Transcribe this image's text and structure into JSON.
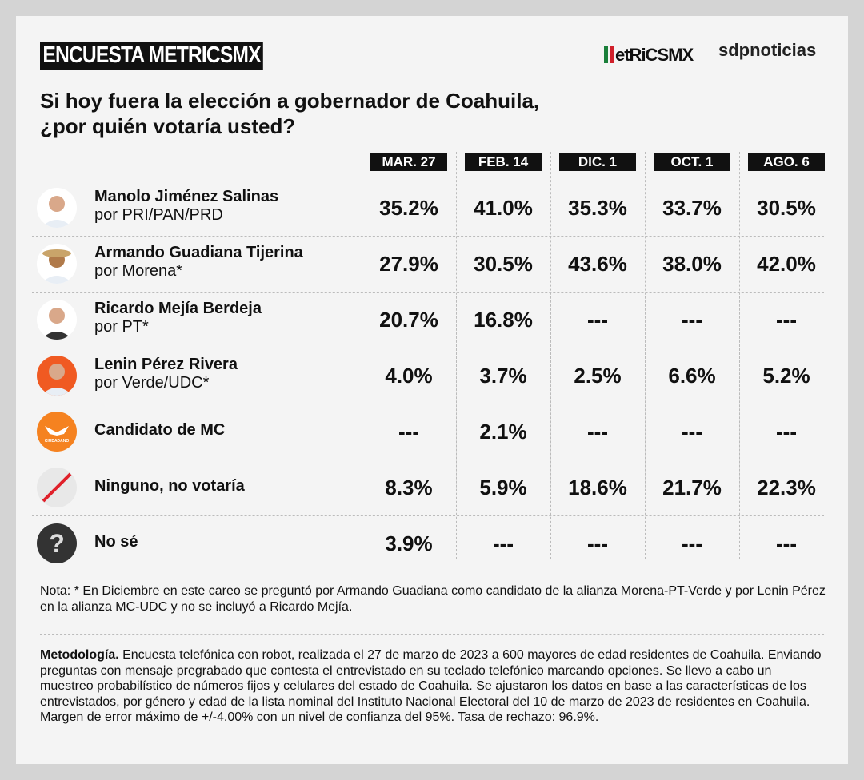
{
  "header": {
    "brand": "ENCUESTA METRICSMX",
    "logo_metrics": "MetricsMx",
    "logo_sdp": "sdpnoticias"
  },
  "title_line1": "Si hoy fuera la elección a gobernador de Coahuila,",
  "title_line2": "¿por quién votaría usted?",
  "chart_data": {
    "type": "table",
    "columns": [
      "MAR. 27",
      "FEB. 14",
      "DIC. 1",
      "OCT. 1",
      "AGO. 6"
    ],
    "rows": [
      {
        "name": "Manolo Jiménez Salinas",
        "party": "por PRI/PAN/PRD",
        "icon": "candidate-photo",
        "values": [
          "35.2%",
          "41.0%",
          "35.3%",
          "33.7%",
          "30.5%"
        ]
      },
      {
        "name": "Armando Guadiana Tijerina",
        "party": "por Morena*",
        "icon": "candidate-photo",
        "values": [
          "27.9%",
          "30.5%",
          "43.6%",
          "38.0%",
          "42.0%"
        ]
      },
      {
        "name": "Ricardo Mejía Berdeja",
        "party": "por PT*",
        "icon": "candidate-photo",
        "values": [
          "20.7%",
          "16.8%",
          "---",
          "---",
          "---"
        ]
      },
      {
        "name": "Lenin Pérez Rivera",
        "party": "por Verde/UDC*",
        "icon": "candidate-photo",
        "values": [
          "4.0%",
          "3.7%",
          "2.5%",
          "6.6%",
          "5.2%"
        ]
      },
      {
        "name": "Candidato de MC",
        "party": "",
        "icon": "movimiento-ciudadano-logo",
        "logo_text": "MOVIMIENTO CIUDADANO",
        "values": [
          "---",
          "2.1%",
          "---",
          "---",
          "---"
        ]
      },
      {
        "name": "Ninguno, no votaría",
        "party": "",
        "icon": "slash-icon",
        "values": [
          "8.3%",
          "5.9%",
          "18.6%",
          "21.7%",
          "22.3%"
        ]
      },
      {
        "name": "No sé",
        "party": "",
        "icon": "question-icon",
        "values": [
          "3.9%",
          "---",
          "---",
          "---",
          "---"
        ]
      }
    ]
  },
  "colors": {
    "mc_orange": "#f58220",
    "slash_red": "#e0202a",
    "header_bg": "#111111"
  },
  "note": "Nota: * En Diciembre en este careo se preguntó por Armando Guadiana como candidato de la alianza Morena-PT-Verde y por Lenin Pérez en la alianza MC-UDC y no se incluyó a Ricardo Mejía.",
  "methodology_label": "Metodología.",
  "methodology": " Encuesta telefónica con robot, realizada el 27 de marzo de 2023 a 600 mayores de edad residentes de Coahuila. Enviando preguntas con mensaje pregrabado que contesta el entrevistado en su teclado telefónico marcando opciones. Se llevo a cabo un muestreo probabilístico de números fijos y celulares del estado de Coahuila. Se ajustaron los datos en base a las características de los entrevistados, por género y edad de la lista nominal del Instituto Nacional Electoral del 10 de marzo de 2023 de residentes en Coahuila. Margen de error máximo de +/-4.00% con un nivel de confianza del 95%. Tasa de rechazo: 96.9%."
}
